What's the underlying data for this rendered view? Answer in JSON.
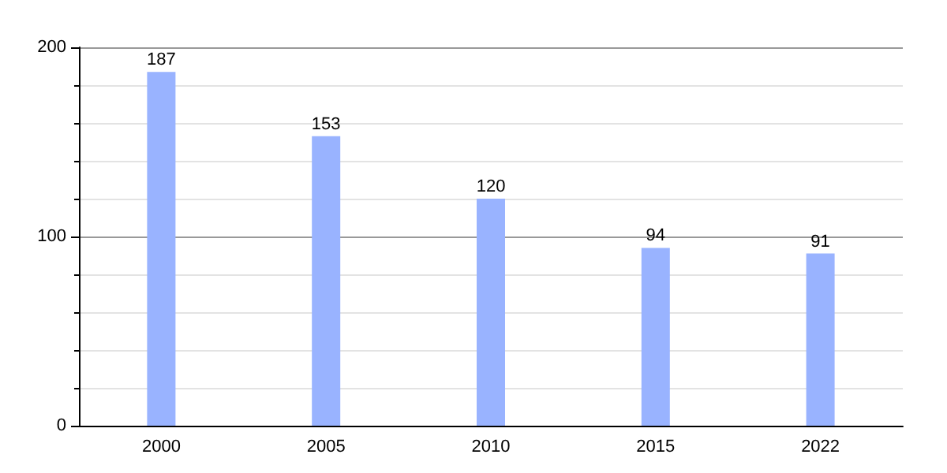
{
  "chart_data": {
    "type": "bar",
    "categories": [
      "2000",
      "2005",
      "2010",
      "2015",
      "2022"
    ],
    "values": [
      187,
      153,
      120,
      94,
      91
    ],
    "color": "#99b3ff",
    "ylim": [
      0,
      200
    ],
    "yticks": [
      0,
      100,
      200
    ],
    "grid": "y",
    "data_labels": true
  }
}
